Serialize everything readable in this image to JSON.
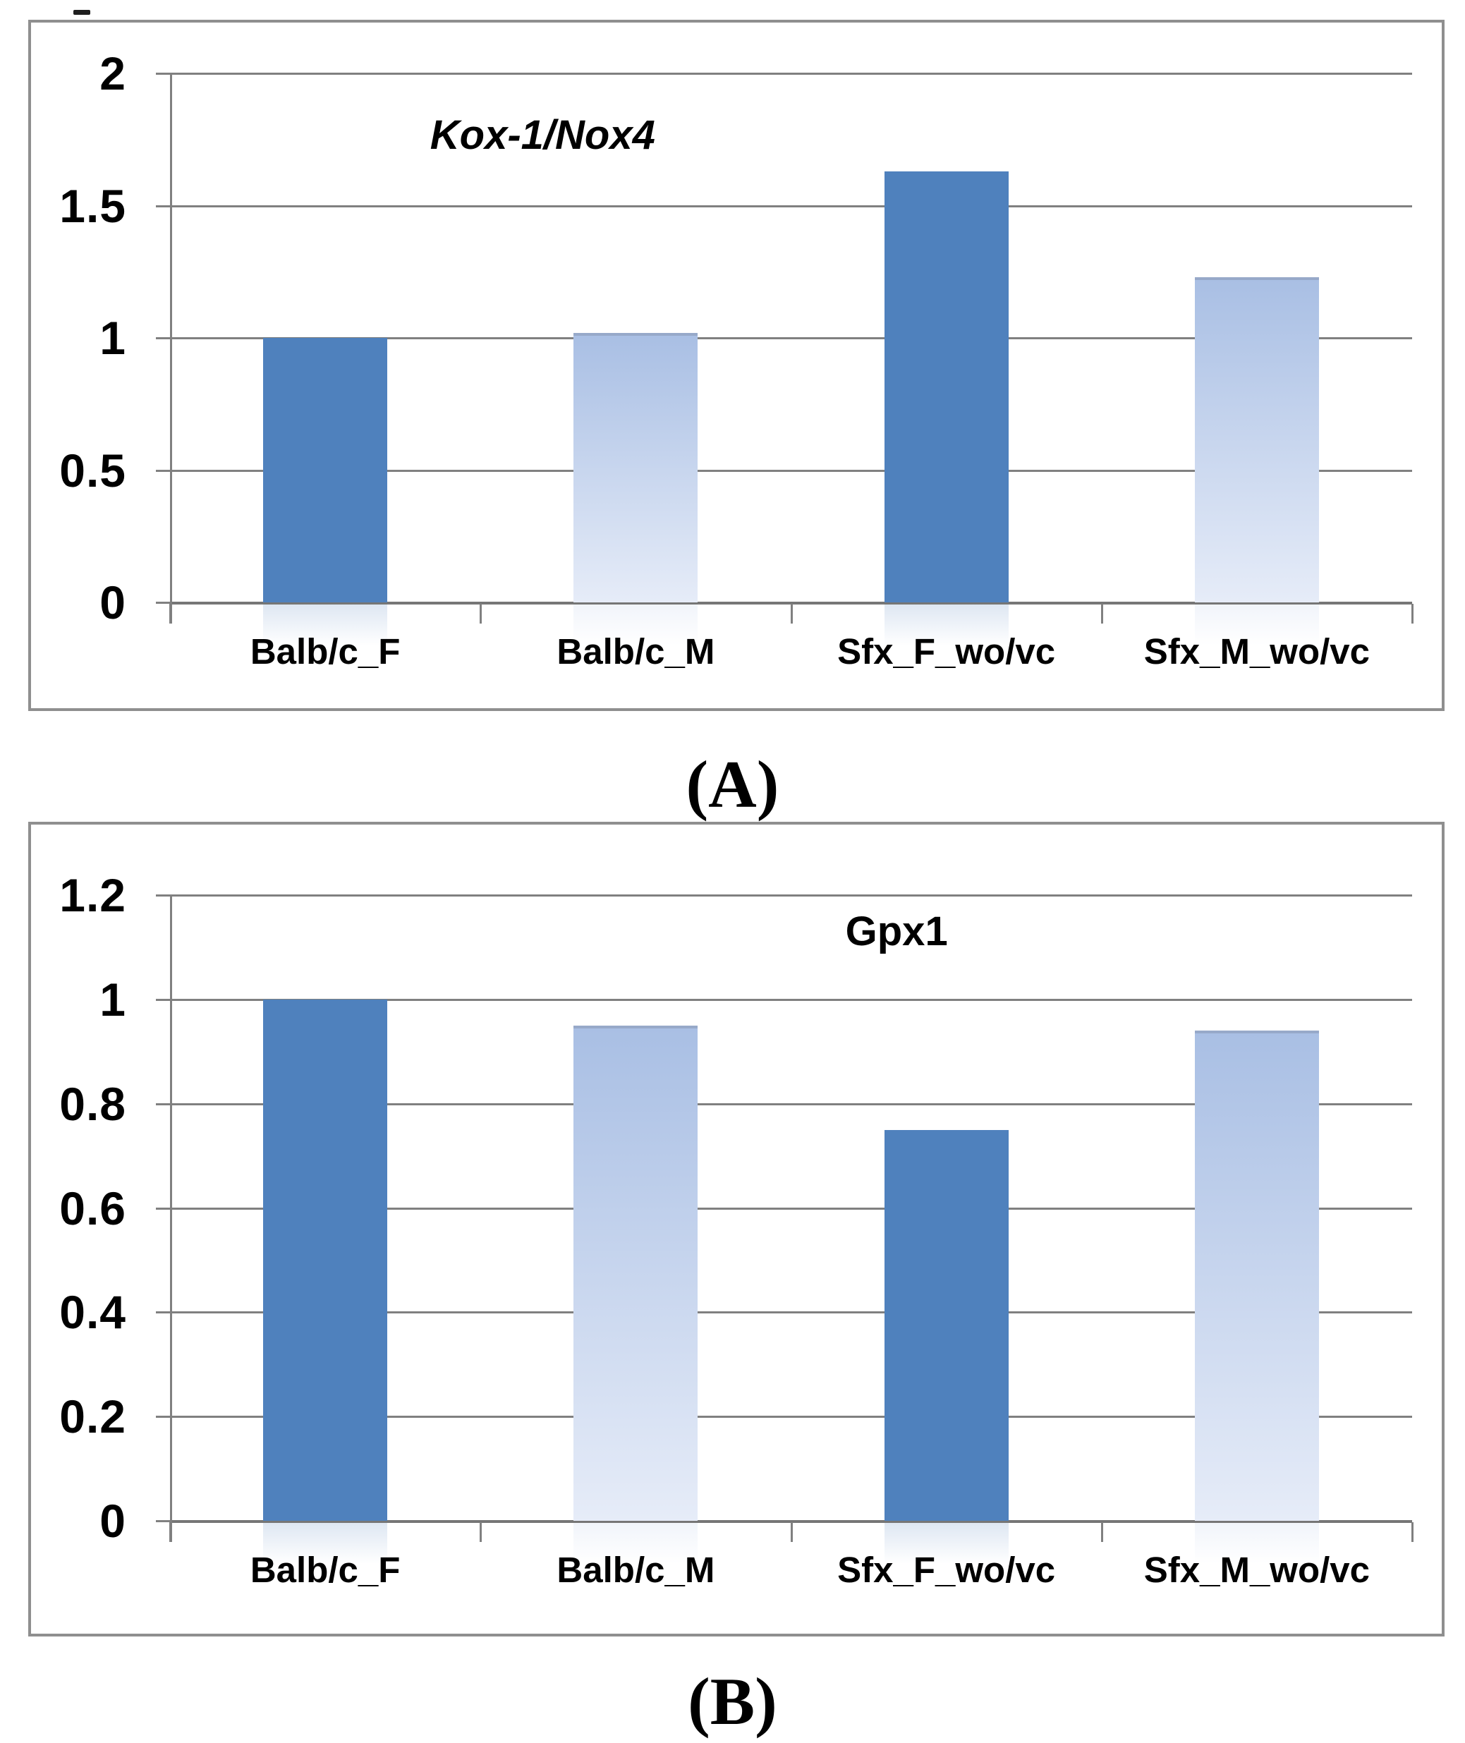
{
  "figure": {
    "captions": [
      {
        "label": "(A)"
      },
      {
        "label": "(B)"
      }
    ]
  },
  "chart_data": [
    {
      "type": "bar",
      "title": "Kox-1/Nox4",
      "title_style": "bold-italic",
      "title_x_frac": 0.3,
      "categories": [
        "Balb/c_F",
        "Balb/c_M",
        "Sfx_F_wo/vc",
        "Sfx_M_wo/vc"
      ],
      "values": [
        1.0,
        1.02,
        1.63,
        1.23
      ],
      "bar_styles": [
        "solid",
        "gradient",
        "solid",
        "gradient"
      ],
      "yticks": [
        2,
        1.5,
        1,
        0.5,
        0
      ],
      "ylim": [
        0,
        2
      ],
      "xlabel": "",
      "ylabel": "",
      "grid": true,
      "legend": "none"
    },
    {
      "type": "bar",
      "title": "Gpx1",
      "title_style": "bold",
      "title_x_frac": 0.585,
      "categories": [
        "Balb/c_F",
        "Balb/c_M",
        "Sfx_F_wo/vc",
        "Sfx_M_wo/vc"
      ],
      "values": [
        1.0,
        0.95,
        0.75,
        0.94
      ],
      "bar_styles": [
        "solid",
        "gradient",
        "solid",
        "gradient"
      ],
      "yticks": [
        1.2,
        1,
        0.8,
        0.6,
        0.4,
        0.2,
        0
      ],
      "ylim": [
        0,
        1.2
      ],
      "xlabel": "",
      "ylabel": "",
      "grid": true,
      "legend": "none"
    }
  ],
  "colors": {
    "bar_solid": "#4f81bd",
    "bar_gradient_top": "#a9bfe4",
    "bar_gradient_bottom": "#e6ecf8",
    "bar_gradient_edge": "#97a9c9",
    "gridline": "#808080",
    "axis": "#767676",
    "panel_border": "#8f8f8f",
    "text": "#000000",
    "reflection_solid": "rgba(137,169,210,0.28)",
    "reflection_gradient": "rgba(234,239,248,0.65)",
    "background": "#ffffff"
  }
}
